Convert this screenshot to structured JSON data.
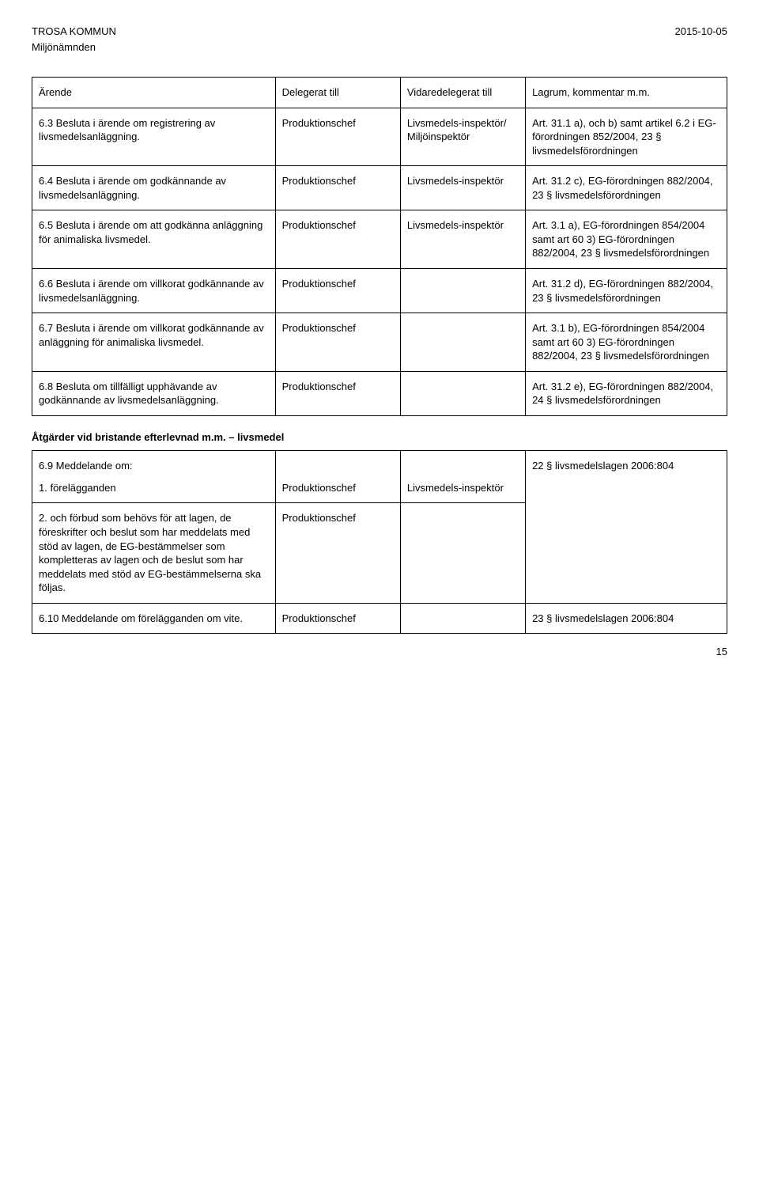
{
  "header": {
    "org": "TROSA KOMMUN",
    "dept": "Miljönämnden",
    "date": "2015-10-05"
  },
  "table1": {
    "headers": [
      "Ärende",
      "Delegerat till",
      "Vidaredelegerat till",
      "Lagrum, kommentar m.m."
    ],
    "rows": [
      {
        "c1": "6.3 Besluta i ärende om registrering av livsmedelsanläggning.",
        "c2": "Produktionschef",
        "c3": "Livsmedels-inspektör/ Miljöinspektör",
        "c4": "Art. 31.1 a), och b) samt artikel 6.2 i EG-förordningen 852/2004, 23 § livsmedelsförordningen"
      },
      {
        "c1": "6.4 Besluta i ärende om godkännande av livsmedelsanläggning.",
        "c2": "Produktionschef",
        "c3": "Livsmedels-inspektör",
        "c4": "Art. 31.2 c), EG-förordningen 882/2004, 23 § livsmedelsförordningen"
      },
      {
        "c1": "6.5 Besluta i ärende om att godkänna anläggning för animaliska livsmedel.",
        "c2": "Produktionschef",
        "c3": "Livsmedels-inspektör",
        "c4": "Art. 3.1 a), EG-förordningen 854/2004 samt art 60 3) EG-förordningen 882/2004, 23 § livsmedelsförordningen"
      },
      {
        "c1": "6.6 Besluta i ärende om villkorat godkännande av livsmedelsanläggning.",
        "c2": "Produktionschef",
        "c3": "",
        "c4": "Art. 31.2 d), EG-förordningen 882/2004, 23 § livsmedelsförordningen"
      },
      {
        "c1": "6.7 Besluta i ärende om villkorat godkännande av anläggning för animaliska livsmedel.",
        "c2": "Produktionschef",
        "c3": "",
        "c4": "Art. 3.1 b), EG-förordningen 854/2004 samt art 60 3) EG-förordningen 882/2004, 23 § livsmedelsförordningen"
      },
      {
        "c1": "6.8 Besluta om tillfälligt upphävande av godkännande av livsmedelsanläggning.",
        "c2": "Produktionschef",
        "c3": "",
        "c4": "Art. 31.2 e), EG-förordningen 882/2004, 24 § livsmedelsförordningen"
      }
    ]
  },
  "section2": {
    "heading": "Åtgärder vid bristande efterlevnad m.m. – livsmedel"
  },
  "table2": {
    "row1": {
      "c1a": "6.9 Meddelande om:",
      "c1b": "1. förelägganden",
      "c2": "Produktionschef",
      "c3": "Livsmedels-inspektör",
      "c4": "22 § livsmedelslagen 2006:804"
    },
    "row2": {
      "c1": "2. och förbud som behövs för att lagen, de föreskrifter och beslut som har meddelats med stöd av lagen, de EG-bestämmelser som kompletteras av lagen och de beslut som har meddelats med stöd av EG-bestämmelserna ska följas.",
      "c2": "Produktionschef",
      "c3": ""
    },
    "row3": {
      "c1": "6.10 Meddelande om förelägganden om vite.",
      "c2": "Produktionschef",
      "c3": "",
      "c4": "23 § livsmedelslagen 2006:804"
    }
  },
  "footer": {
    "page": "15"
  }
}
